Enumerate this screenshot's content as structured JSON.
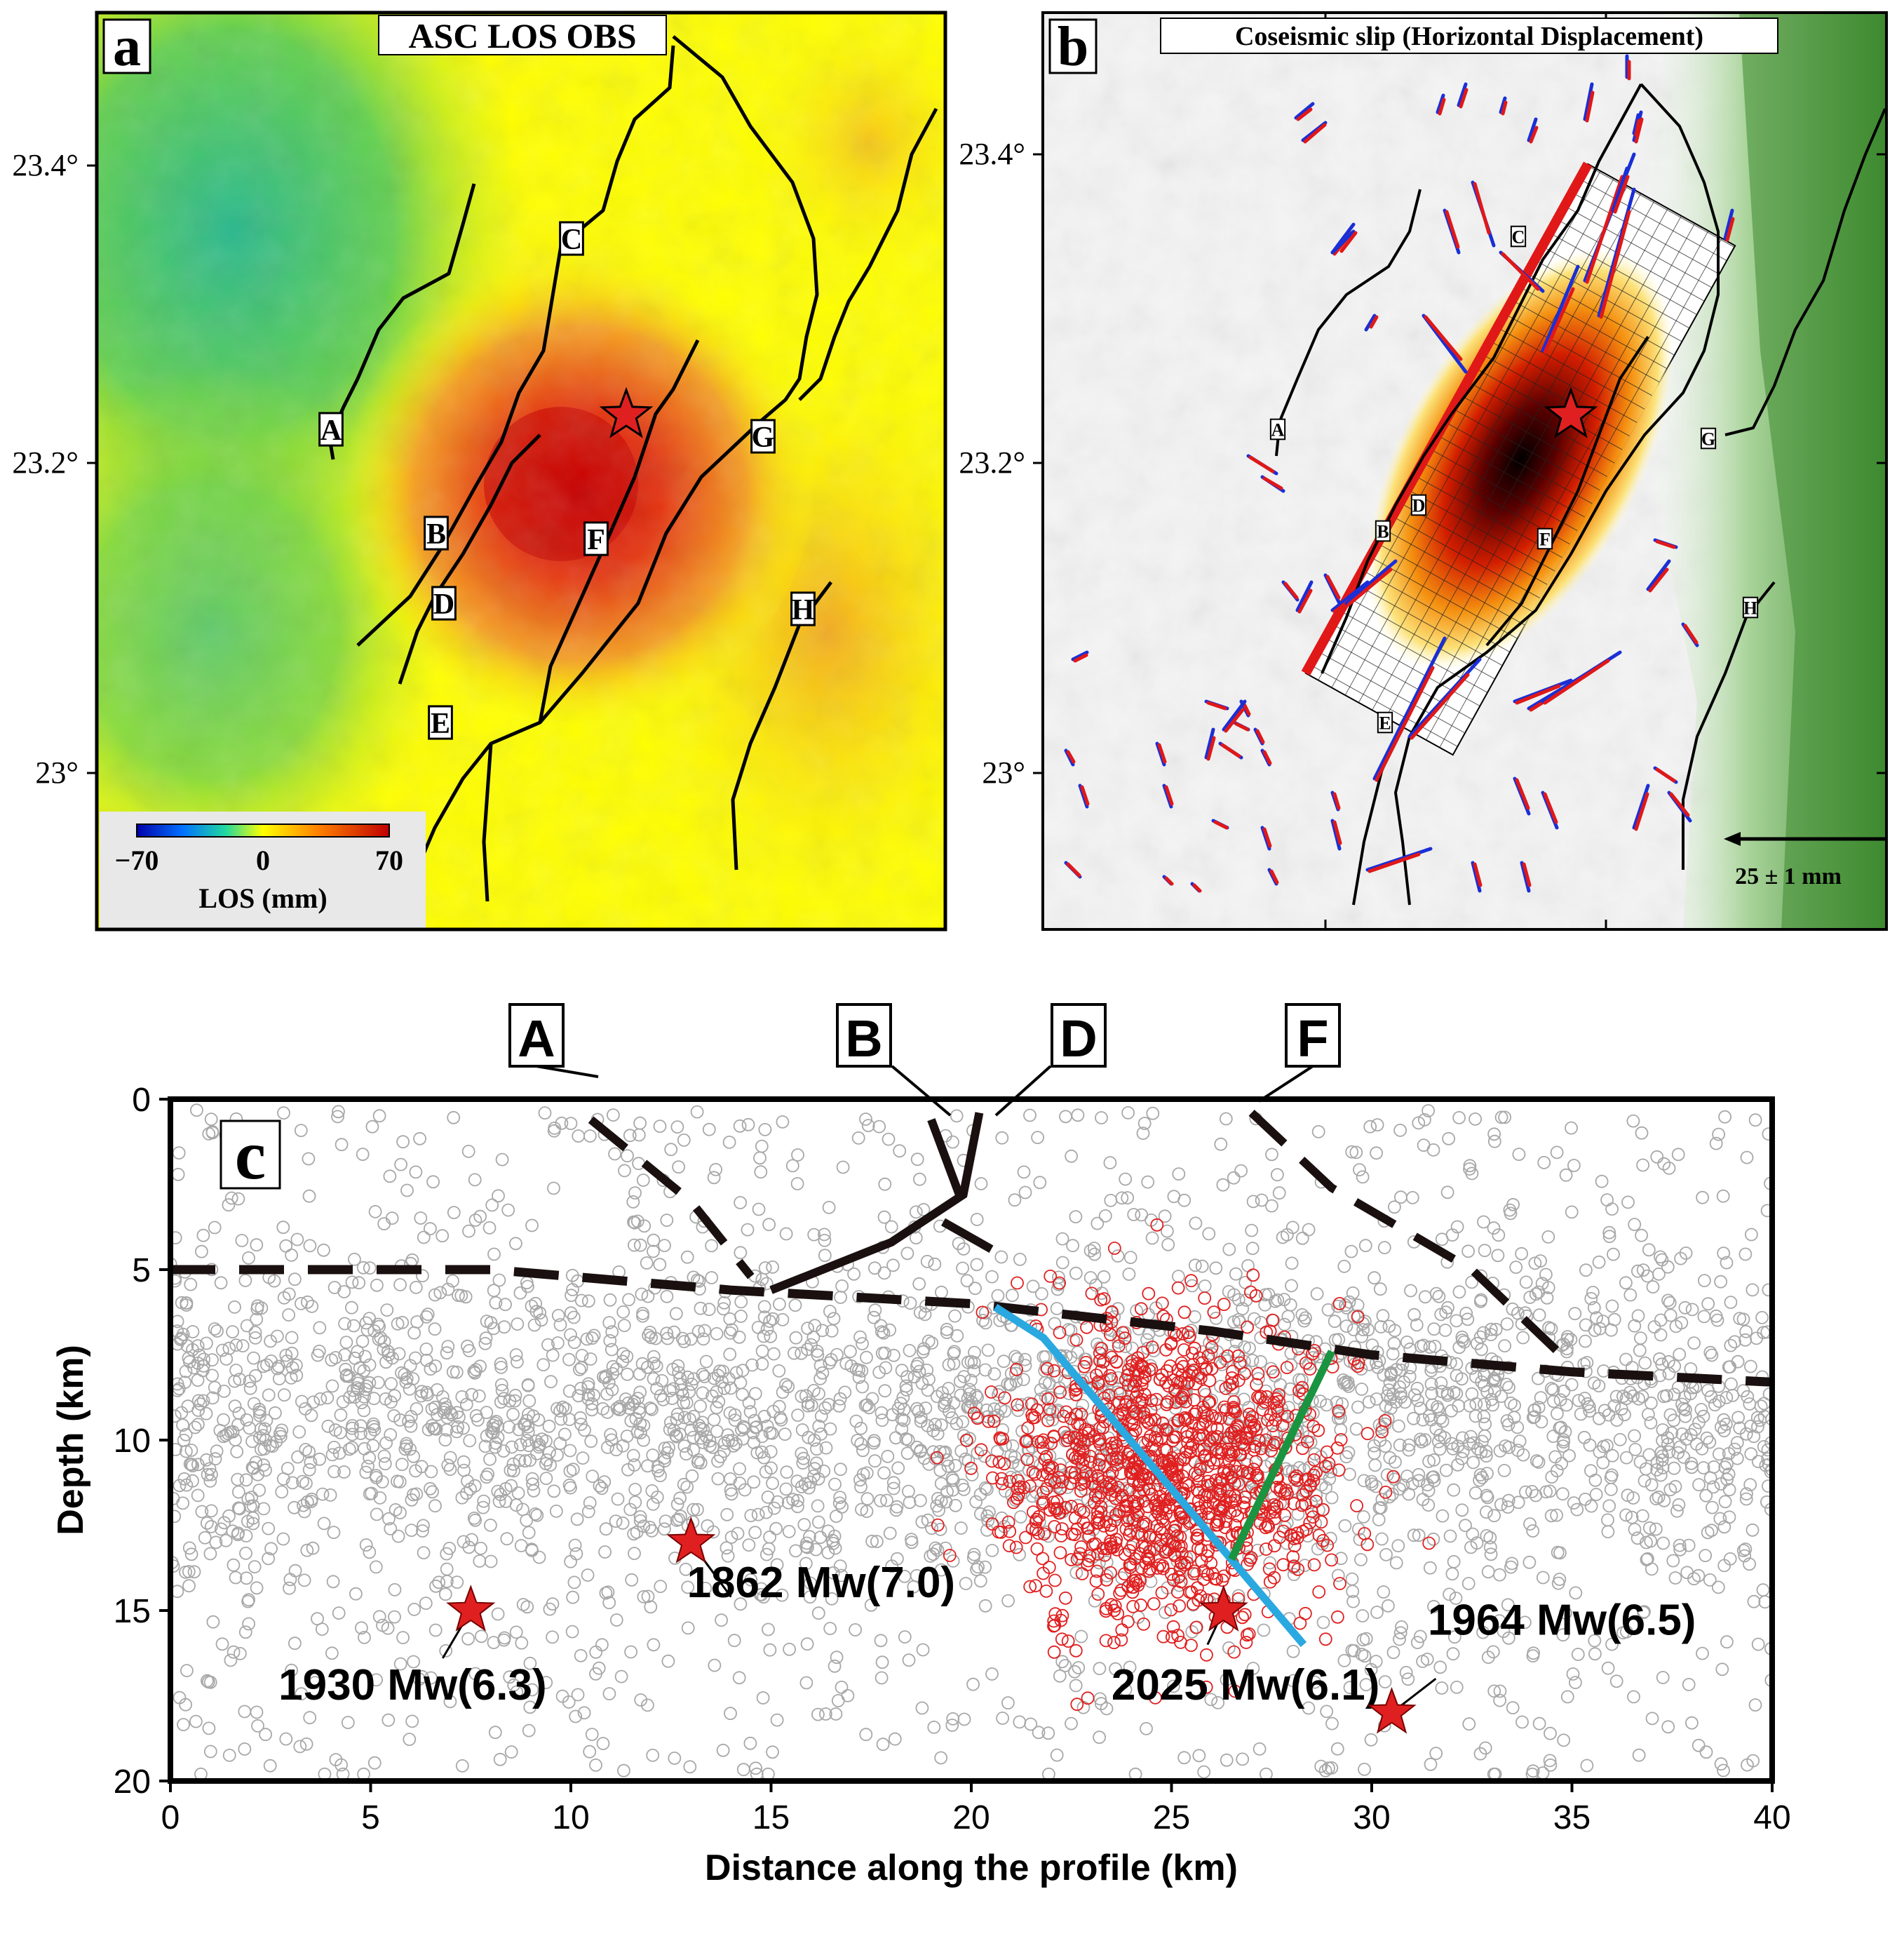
{
  "panel_a": {
    "letter": "a",
    "title": "ASC LOS OBS",
    "lat_ticks": [
      "23.4°",
      "23.2°",
      "23°"
    ],
    "fault_labels": [
      "A",
      "B",
      "C",
      "D",
      "E",
      "F",
      "G",
      "H"
    ],
    "colorbar": {
      "min_label": "−70",
      "mid_label": "0",
      "max_label": "70",
      "label": "LOS (mm)",
      "min": -70,
      "max": 70
    }
  },
  "panel_b": {
    "letter": "b",
    "title": "Coseismic slip (Horizontal Displacement)",
    "lat_ticks": [
      "23.4°",
      "23.2°",
      "23°"
    ],
    "fault_labels": [
      "A",
      "B",
      "C",
      "D",
      "E",
      "F",
      "G",
      "H"
    ],
    "scale_label": "25 ± 1 mm",
    "vector_colors": {
      "observed": "#1a2fd6",
      "modeled": "#e01818"
    }
  },
  "panel_c": {
    "letter": "c",
    "fault_labels": [
      "A",
      "B",
      "D",
      "F"
    ],
    "chart_data": {
      "type": "scatter",
      "xlabel": "Distance along the profile (km)",
      "ylabel": "Depth (km)",
      "xlim": [
        0,
        40
      ],
      "ylim": [
        20,
        0
      ],
      "x_ticks": [
        "0",
        "5",
        "10",
        "15",
        "20",
        "25",
        "30",
        "35",
        "40"
      ],
      "y_ticks": [
        "0",
        "5",
        "10",
        "15",
        "20"
      ],
      "events": [
        {
          "label": "1930 Mw(6.3)",
          "x": 7.5,
          "y": 15.0
        },
        {
          "label": "1862 Mw(7.0)",
          "x": 13.0,
          "y": 13.0
        },
        {
          "label": "2025 Mw(6.1)",
          "x": 26.3,
          "y": 15.0
        },
        {
          "label": "1964 Mw(6.5)",
          "x": 30.5,
          "y": 18.0
        }
      ],
      "decollement": [
        [
          0,
          5.0
        ],
        [
          8,
          5.0
        ],
        [
          14,
          5.6
        ],
        [
          20,
          6.0
        ],
        [
          26,
          6.8
        ],
        [
          30,
          7.5
        ],
        [
          35,
          8.0
        ],
        [
          40,
          8.3
        ]
      ],
      "fault_A": [
        [
          10.5,
          0.6
        ],
        [
          13,
          3.0
        ],
        [
          14.5,
          5.2
        ]
      ],
      "fault_B": [
        [
          19.0,
          0.6
        ],
        [
          19.7,
          2.8
        ]
      ],
      "fault_D": [
        [
          20.2,
          0.4
        ],
        [
          19.8,
          2.8
        ],
        [
          18.0,
          4.2
        ],
        [
          15.0,
          5.6
        ]
      ],
      "fault_F": [
        [
          27.0,
          0.4
        ],
        [
          29.0,
          2.6
        ],
        [
          32.5,
          5.0
        ],
        [
          35.0,
          7.8
        ]
      ],
      "fault_D_tail": [
        [
          19.3,
          3.6
        ],
        [
          20.5,
          4.4
        ]
      ],
      "rupture_blue": [
        [
          20.6,
          6.1
        ],
        [
          21.8,
          7.0
        ],
        [
          28.3,
          16.0
        ]
      ],
      "rupture_green": [
        [
          29.0,
          7.4
        ],
        [
          26.5,
          13.5
        ]
      ],
      "colors": {
        "background_seismicity": "#a8a8a8",
        "aftershocks": "#e02020",
        "blue_fault": "#2aa8e0",
        "green_fault": "#1a9440",
        "star": "#e02020"
      }
    }
  }
}
